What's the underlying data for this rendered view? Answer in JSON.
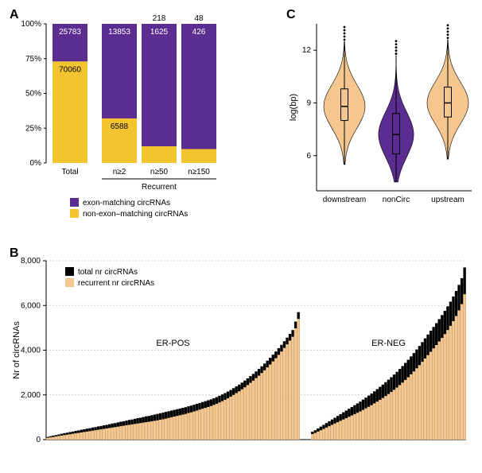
{
  "colors": {
    "purple": "#5c2d91",
    "yellow": "#f4c430",
    "peach": "#f5c78f",
    "black": "#000000",
    "grid": "#d0d0d0",
    "white": "#ffffff"
  },
  "panelA": {
    "label": "A",
    "title_fontsize": 16,
    "ylabel_ticks": [
      "0%",
      "25%",
      "50%",
      "75%",
      "100%"
    ],
    "categories": [
      "Total",
      "n≥2",
      "n≥50",
      "n≥150"
    ],
    "recurrent_group_label": "Recurrent",
    "bars": [
      {
        "top_val": 25783,
        "bottom_val": 70060,
        "top_pct": 27,
        "bottom_pct": 73
      },
      {
        "top_val": 13853,
        "bottom_val": 6588,
        "top_pct": 68,
        "bottom_pct": 32
      },
      {
        "top_val": 1625,
        "bottom_val": 218,
        "top_pct": 88,
        "bottom_pct": 12
      },
      {
        "top_val": 426,
        "bottom_val": 48,
        "top_pct": 90,
        "bottom_pct": 10
      }
    ],
    "legend": {
      "items": [
        {
          "color": "#5c2d91",
          "label": "exon-matching circRNAs"
        },
        {
          "color": "#f4c430",
          "label": "non-exon–matching circRNAs"
        }
      ]
    }
  },
  "panelC": {
    "label": "C",
    "ylabel": "log(bp)",
    "yticks": [
      6,
      9,
      12
    ],
    "categories": [
      "downstream",
      "nonCirc",
      "upstream"
    ],
    "violins": [
      {
        "fill": "#f5c78f",
        "median": 8.8,
        "q1": 8.0,
        "q3": 9.8,
        "whisker_lo": 5.5,
        "whisker_hi": 12.5,
        "width": 1.0
      },
      {
        "fill": "#5c2d91",
        "median": 7.2,
        "q1": 6.1,
        "q3": 8.4,
        "whisker_lo": 4.5,
        "whisker_hi": 11.7,
        "width": 0.85
      },
      {
        "fill": "#f5c78f",
        "median": 9.0,
        "q1": 8.2,
        "q3": 9.9,
        "whisker_lo": 5.8,
        "whisker_hi": 12.6,
        "width": 1.0
      }
    ]
  },
  "panelB": {
    "label": "B",
    "ylabel": "Nr of circRNAs",
    "yticks": [
      0,
      2000,
      4000,
      6000,
      8000
    ],
    "ytick_labels": [
      "0",
      "2,000",
      "4,000",
      "6,000",
      "8,000"
    ],
    "groups": [
      {
        "label": "ER-POS",
        "n": 90,
        "total": [
          120,
          150,
          180,
          200,
          230,
          260,
          290,
          310,
          340,
          360,
          390,
          410,
          440,
          460,
          490,
          510,
          540,
          560,
          590,
          610,
          640,
          660,
          690,
          720,
          740,
          770,
          800,
          820,
          850,
          880,
          900,
          930,
          960,
          980,
          1010,
          1040,
          1060,
          1090,
          1120,
          1150,
          1180,
          1210,
          1240,
          1270,
          1300,
          1330,
          1360,
          1390,
          1420,
          1450,
          1490,
          1520,
          1560,
          1600,
          1640,
          1680,
          1720,
          1760,
          1800,
          1850,
          1900,
          1960,
          2020,
          2080,
          2150,
          2220,
          2300,
          2380,
          2460,
          2550,
          2640,
          2740,
          2840,
          2940,
          3050,
          3160,
          3280,
          3400,
          3530,
          3660,
          3800,
          3940,
          4090,
          4240,
          4400,
          4560,
          4730,
          4900,
          5280,
          5700
        ],
        "recurrent": [
          80,
          100,
          120,
          140,
          160,
          180,
          200,
          220,
          240,
          260,
          280,
          300,
          320,
          340,
          360,
          380,
          400,
          420,
          440,
          460,
          480,
          500,
          520,
          540,
          560,
          580,
          600,
          620,
          640,
          660,
          680,
          700,
          720,
          740,
          760,
          780,
          800,
          820,
          840,
          860,
          890,
          910,
          940,
          970,
          1000,
          1030,
          1060,
          1090,
          1120,
          1150,
          1190,
          1220,
          1260,
          1300,
          1340,
          1380,
          1420,
          1460,
          1500,
          1550,
          1600,
          1660,
          1720,
          1780,
          1850,
          1920,
          2000,
          2080,
          2160,
          2250,
          2340,
          2440,
          2540,
          2640,
          2750,
          2860,
          2980,
          3100,
          3230,
          3360,
          3500,
          3640,
          3790,
          3940,
          4100,
          4260,
          4430,
          4600,
          4980,
          5400
        ]
      },
      {
        "label": "ER-NEG",
        "n": 55,
        "total": [
          350,
          420,
          500,
          580,
          660,
          740,
          820,
          900,
          980,
          1060,
          1140,
          1220,
          1300,
          1380,
          1460,
          1540,
          1620,
          1700,
          1790,
          1880,
          1970,
          2060,
          2160,
          2260,
          2360,
          2460,
          2570,
          2680,
          2790,
          2910,
          3030,
          3160,
          3290,
          3430,
          3570,
          3720,
          3870,
          4030,
          4190,
          4360,
          4530,
          4700,
          4870,
          5040,
          5210,
          5390,
          5570,
          5760,
          5960,
          6170,
          6400,
          6650,
          6920,
          7220,
          7700
        ],
        "recurrent": [
          250,
          300,
          360,
          420,
          480,
          540,
          600,
          660,
          720,
          780,
          840,
          900,
          960,
          1020,
          1080,
          1140,
          1200,
          1260,
          1330,
          1400,
          1470,
          1540,
          1620,
          1700,
          1780,
          1860,
          1950,
          2040,
          2130,
          2230,
          2330,
          2440,
          2550,
          2670,
          2790,
          2920,
          3050,
          3190,
          3330,
          3480,
          3630,
          3780,
          3930,
          4080,
          4230,
          4390,
          4550,
          4720,
          4900,
          5090,
          5300,
          5530,
          5780,
          6060,
          6500
        ]
      }
    ],
    "legend": {
      "items": [
        {
          "color": "#000000",
          "label": "total nr circRNAs"
        },
        {
          "color": "#f5c78f",
          "label": "recurrent nr circRNAs"
        }
      ]
    }
  }
}
